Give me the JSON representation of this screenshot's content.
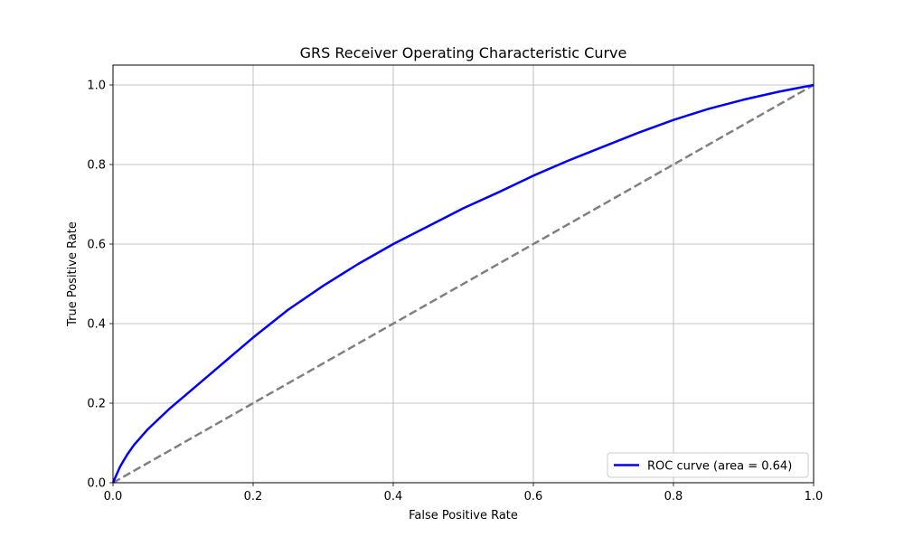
{
  "chart_data": {
    "type": "line",
    "title": "GRS Receiver Operating Characteristic Curve",
    "xlabel": "False Positive Rate",
    "ylabel": "True Positive Rate",
    "xlim": [
      0.0,
      1.0
    ],
    "ylim": [
      0.0,
      1.05
    ],
    "xticks": [
      0.0,
      0.2,
      0.4,
      0.6,
      0.8,
      1.0
    ],
    "yticks": [
      0.0,
      0.2,
      0.4,
      0.6,
      0.8,
      1.0
    ],
    "xtick_labels": [
      "0.0",
      "0.2",
      "0.4",
      "0.6",
      "0.8",
      "1.0"
    ],
    "ytick_labels": [
      "0.0",
      "0.2",
      "0.4",
      "0.6",
      "0.8",
      "1.0"
    ],
    "grid": true,
    "legend_position": "lower-right",
    "series": [
      {
        "name": "ROC curve (area = 0.64)",
        "color": "#0000ff",
        "style": "solid",
        "x": [
          0.0,
          0.01,
          0.02,
          0.03,
          0.05,
          0.08,
          0.1,
          0.15,
          0.2,
          0.25,
          0.3,
          0.35,
          0.4,
          0.45,
          0.5,
          0.55,
          0.6,
          0.65,
          0.7,
          0.75,
          0.8,
          0.85,
          0.9,
          0.95,
          1.0
        ],
        "y": [
          0.0,
          0.04,
          0.07,
          0.095,
          0.135,
          0.185,
          0.215,
          0.29,
          0.365,
          0.435,
          0.495,
          0.55,
          0.6,
          0.645,
          0.69,
          0.73,
          0.772,
          0.81,
          0.845,
          0.88,
          0.912,
          0.94,
          0.963,
          0.983,
          1.0
        ]
      },
      {
        "name": "",
        "color": "#808080",
        "style": "dashed",
        "x": [
          0.0,
          1.0
        ],
        "y": [
          0.0,
          1.0
        ]
      }
    ],
    "legend_entries": [
      "ROC curve (area = 0.64)"
    ]
  }
}
